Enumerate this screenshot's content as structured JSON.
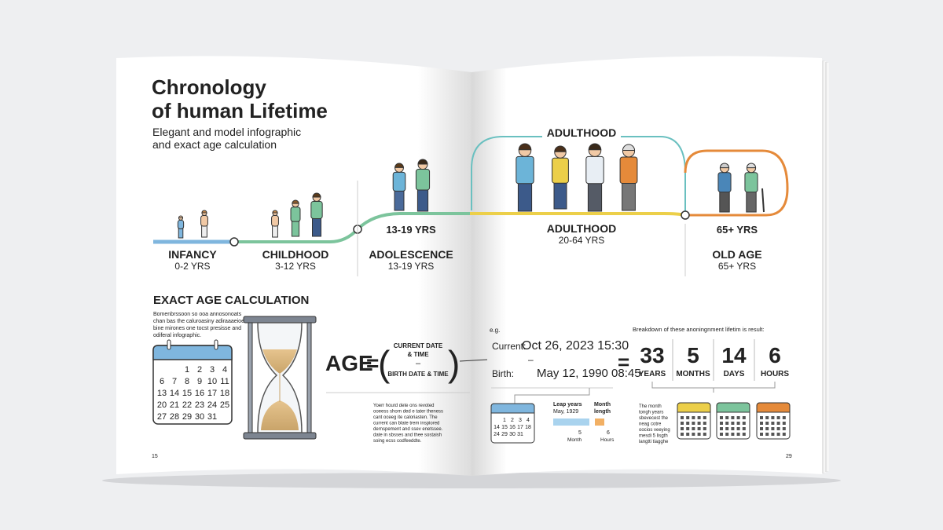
{
  "left_page": {
    "title": [
      "Chronology",
      "of human Lifetime"
    ],
    "subtitle": [
      "Elegant and model infographic",
      "and exact age calculation"
    ],
    "section_title": "EXACT AGE CALCULATION",
    "section_text": [
      "Bomenbrssoon so ooa annosonoats",
      "chan bas the caluroasiny adiraaaeioe",
      "bine mirones one tocst presisse and",
      "odiferal infographic."
    ],
    "calendar": [
      [
        "1",
        "2",
        "3",
        "4"
      ],
      [
        "6",
        "7",
        "8",
        "9",
        "10",
        "11"
      ],
      [
        "13",
        "14",
        "15",
        "16",
        "17",
        "18"
      ],
      [
        "20",
        "21",
        "22",
        "23",
        "24",
        "25"
      ],
      [
        "27",
        "28",
        "29",
        "30",
        "31"
      ]
    ],
    "formula": {
      "lhs": "AGE",
      "equals": "=",
      "open": "(",
      "current": [
        "CURRENT DATE",
        "& TIME"
      ],
      "minus": "–",
      "birth": "BIRTH DATE & TIME",
      "close": ")"
    },
    "note": [
      "Yoerr hourd dete ons revoted",
      "ooeess shorn ded e tater theness",
      "cant oceeg ite caloriasten. The",
      "current can blate trem inspiored",
      "dernspement and ssev enetssee.",
      "date in sbsses and thee sostaish",
      "soing ecss codfeeddte."
    ],
    "page_number": "15"
  },
  "timeline": {
    "loop_label": "ADULTHOOD",
    "stages": [
      {
        "name": "INFANCY",
        "range": "0-2 YRS"
      },
      {
        "name": "CHILDHOOD",
        "range": "3-12 YRS"
      },
      {
        "name": "ADOLESCENCE",
        "range": "13-19 YRS",
        "upper_range": "13-19 YRS"
      },
      {
        "name": "ADULTHOOD",
        "range": "20-64 YRS"
      },
      {
        "name": "OLD AGE",
        "range": "65+ YRS",
        "upper_range": "65+ YRS"
      }
    ]
  },
  "right_page": {
    "example_label": "e.g.",
    "current_label": "Current:",
    "current_value": "Oct 26, 2023 15:30",
    "minus": "–",
    "birth_label": "Birth:",
    "birth_value": "May 12, 1990 08:45",
    "equals": "=",
    "breakdown_title": "Breakdown of these anoningnment lifetim is result:",
    "results": [
      {
        "value": "33",
        "unit": "YEARS"
      },
      {
        "value": "5",
        "unit": "MONTHS"
      },
      {
        "value": "14",
        "unit": "DAYS"
      },
      {
        "value": "6",
        "unit": "HOURS"
      }
    ],
    "mini_calendar": [
      [
        "1",
        "2",
        "3",
        "4"
      ],
      [
        "14",
        "15",
        "16",
        "17",
        "18"
      ],
      [
        "24",
        "29",
        "30",
        "31"
      ]
    ],
    "leap_title": [
      "Leap years",
      "May, 1929"
    ],
    "month_title": [
      "Month",
      "length"
    ],
    "leap_value": "5",
    "leap_unit": "Month",
    "month_value": "6",
    "month_unit": "Hours",
    "note": [
      "The month",
      "tongh years",
      "sbevecest the",
      "neag cotre",
      "oocios veeying",
      "mesdi 5 lisgth",
      "langtti tiagghe"
    ],
    "page_number": "29"
  }
}
